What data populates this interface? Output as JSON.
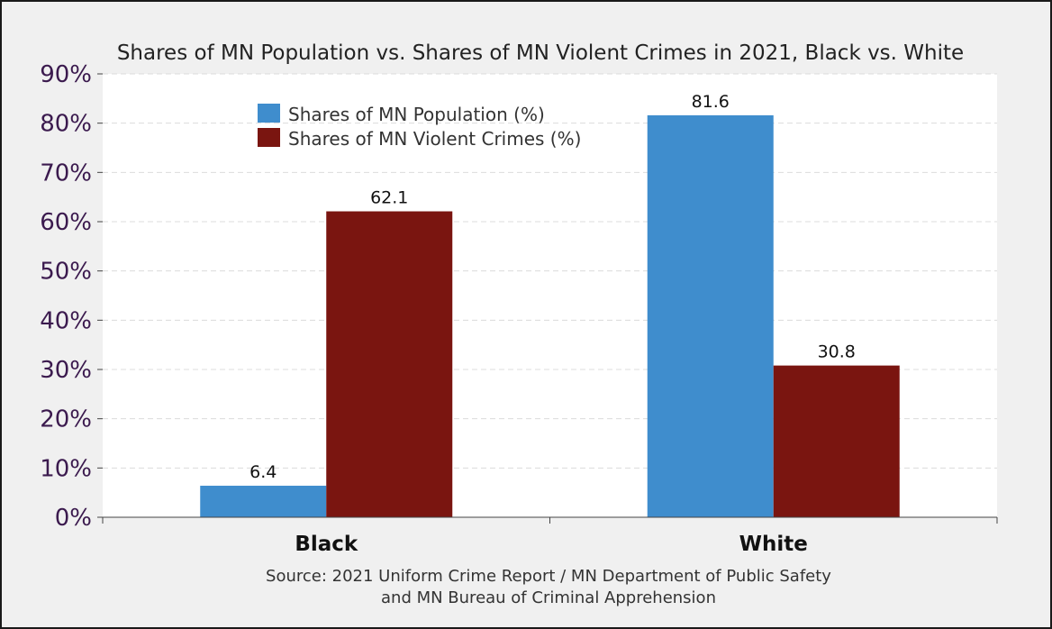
{
  "colors": {
    "population": "#3f8dcd",
    "violent_crimes": "#7a1510",
    "tick_text": "#3b1a4e",
    "plot_bg": "#ffffff",
    "outer_bg": "#f0f0f0"
  },
  "chart_data": {
    "type": "bar",
    "title": "Shares of MN Population vs. Shares of MN Violent Crimes in 2021, Black vs. White",
    "categories": [
      "Black",
      "White"
    ],
    "series": [
      {
        "name": "Shares of MN Population (%)",
        "values": [
          6.4,
          81.6
        ]
      },
      {
        "name": "Shares of MN Violent Crimes (%)",
        "values": [
          62.1,
          30.8
        ]
      }
    ],
    "data_labels": [
      [
        "6.4",
        "81.6"
      ],
      [
        "62.1",
        "30.8"
      ]
    ],
    "ylim": [
      0,
      90
    ],
    "yticks": [
      "0%",
      "10%",
      "20%",
      "30%",
      "40%",
      "50%",
      "60%",
      "70%",
      "80%",
      "90%"
    ],
    "grid": true,
    "legend_position": "top-left",
    "source_lines": [
      "Source: 2021 Uniform Crime Report / MN Department of Public Safety",
      "and MN Bureau of Criminal Apprehension"
    ]
  }
}
